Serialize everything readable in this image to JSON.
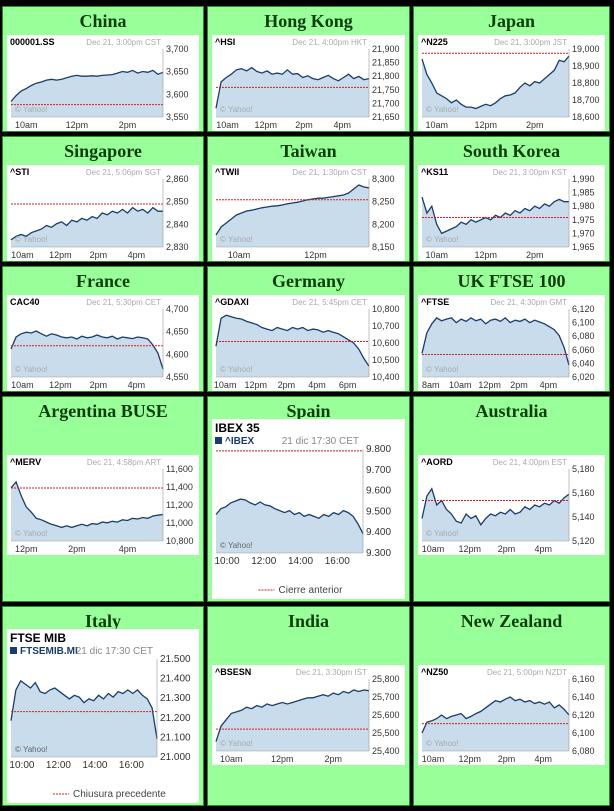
{
  "theme": {
    "cell_bg": "#99ff99",
    "page_bg": "#000000",
    "title_color": "#0d3d0d",
    "line_color": "#1a3d6e",
    "fill_color": "#c9dcec",
    "prev_close_color": "#cc2222",
    "axis_text_color": "#333333",
    "meta_text_color": "#aaaaaa"
  },
  "charts": [
    {
      "title": "China",
      "symbol": "000001.SS",
      "timestamp": "Dec 21, 3:00pm CST",
      "watermark": "© Yahoo!",
      "y_ticks": [
        "3,700",
        "3,650",
        "3,600",
        "3,550"
      ],
      "x_ticks": [
        "10am",
        "12pm",
        "2pm"
      ],
      "y_min": 3535,
      "y_max": 3710,
      "prev_close": 3567,
      "series": [
        3575,
        3590,
        3602,
        3608,
        3616,
        3622,
        3625,
        3630,
        3632,
        3630,
        3632,
        3636,
        3640,
        3642,
        3640,
        3640,
        3641,
        3640,
        3642,
        3643,
        3644,
        3648,
        3652,
        3650,
        3655,
        3648,
        3652,
        3650,
        3655,
        3645,
        3650
      ]
    },
    {
      "title": "Hong Kong",
      "symbol": "^HSI",
      "timestamp": "Dec 21, 4:00pm HKT",
      "watermark": "© Yahoo!",
      "y_ticks": [
        "21,900",
        "21,850",
        "21,800",
        "21,750",
        "21,700",
        "21,650"
      ],
      "x_ticks": [
        "10am",
        "12pm",
        "2pm",
        "4pm"
      ],
      "y_min": 21620,
      "y_max": 21930,
      "prev_close": 21755,
      "series": [
        21660,
        21780,
        21800,
        21815,
        21835,
        21840,
        21830,
        21845,
        21828,
        21820,
        21830,
        21815,
        21820,
        21815,
        21835,
        21815,
        21818,
        21800,
        21808,
        21795,
        21790,
        21800,
        21810,
        21795,
        21785,
        21800,
        21815,
        21795,
        21805,
        21790,
        21795
      ]
    },
    {
      "title": "Japan",
      "symbol": "^N225",
      "timestamp": "Dec 21, 3:00pm JST",
      "watermark": "© Yahoo!",
      "y_ticks": [
        "19,000",
        "18,900",
        "18,800",
        "18,700",
        "18,600"
      ],
      "x_ticks": [
        "10am",
        "12pm",
        "2pm"
      ],
      "y_min": 18550,
      "y_max": 19030,
      "prev_close": 19000,
      "series": [
        18960,
        18850,
        18790,
        18720,
        18700,
        18680,
        18650,
        18670,
        18640,
        18620,
        18620,
        18610,
        18625,
        18640,
        18630,
        18650,
        18680,
        18700,
        18705,
        18720,
        18760,
        18790,
        18770,
        18800,
        18790,
        18820,
        18850,
        18880,
        18950,
        18940,
        18980
      ]
    },
    {
      "title": "Singapore",
      "symbol": "^STI",
      "timestamp": "Dec 21, 5:06pm SGT",
      "watermark": "© Yahoo!",
      "y_ticks": [
        "2,860",
        "2,850",
        "2,840",
        "2,830"
      ],
      "x_ticks": [
        "10am",
        "12pm",
        "2pm",
        "4pm"
      ],
      "y_min": 2826,
      "y_max": 2864,
      "prev_close": 2850,
      "series": [
        2830,
        2832,
        2833,
        2832,
        2834,
        2835,
        2836,
        2838,
        2837,
        2839,
        2840,
        2838,
        2841,
        2840,
        2842,
        2841,
        2843,
        2842,
        2845,
        2844,
        2846,
        2845,
        2847,
        2845,
        2848,
        2846,
        2847,
        2845,
        2848,
        2846,
        2846
      ]
    },
    {
      "title": "Taiwan",
      "symbol": "^TWII",
      "timestamp": "Dec 21, 1:30pm CST",
      "watermark": "© Yahoo!",
      "y_ticks": [
        "8,300",
        "8,250",
        "8,200",
        "8,150"
      ],
      "x_ticks": [
        "10am",
        "12pm"
      ],
      "y_min": 8140,
      "y_max": 8310,
      "prev_close": 8258,
      "series": [
        8170,
        8190,
        8200,
        8210,
        8220,
        8225,
        8230,
        8232,
        8235,
        8238,
        8240,
        8242,
        8243,
        8245,
        8248,
        8250,
        8252,
        8255,
        8258,
        8260,
        8262,
        8262,
        8264,
        8266,
        8268,
        8270,
        8275,
        8285,
        8295,
        8290,
        8288
      ]
    },
    {
      "title": "South Korea",
      "symbol": "^KS11",
      "timestamp": "Dec 21, 3:00pm KST",
      "watermark": "© Yahoo!",
      "y_ticks": [
        "1,990",
        "1,985",
        "1,980",
        "1,975",
        "1,970",
        "1,965"
      ],
      "x_ticks": [
        "10am",
        "12pm",
        "2pm"
      ],
      "y_min": 1962,
      "y_max": 1992,
      "prev_close": 1975,
      "series": [
        1984,
        1977,
        1980,
        1972,
        1968,
        1969,
        1970,
        1971,
        1973,
        1972,
        1974,
        1973,
        1974,
        1975,
        1974,
        1976,
        1975,
        1977,
        1976,
        1978,
        1977,
        1979,
        1978,
        1980,
        1979,
        1981,
        1980,
        1982,
        1983,
        1982,
        1982
      ]
    },
    {
      "title": "France",
      "symbol": "CAC40",
      "timestamp": "Dec 21, 5:30pm CET",
      "watermark": "© Yahoo!",
      "y_ticks": [
        "4,700",
        "4,650",
        "4,600",
        "4,550"
      ],
      "x_ticks": [
        "10am",
        "12pm",
        "2pm",
        "4pm"
      ],
      "y_min": 4540,
      "y_max": 4710,
      "prev_close": 4618,
      "series": [
        4610,
        4640,
        4648,
        4652,
        4650,
        4655,
        4648,
        4642,
        4648,
        4645,
        4640,
        4638,
        4640,
        4635,
        4642,
        4638,
        4640,
        4645,
        4640,
        4638,
        4642,
        4635,
        4640,
        4638,
        4636,
        4640,
        4638,
        4635,
        4620,
        4600,
        4560
      ]
    },
    {
      "title": "Germany",
      "symbol": "^GDAXI",
      "timestamp": "Dec 21, 5:45pm CET",
      "watermark": "© Yahoo!",
      "y_ticks": [
        "10,800",
        "10,700",
        "10,600",
        "10,500",
        "10,400"
      ],
      "x_ticks": [
        "10am",
        "12pm",
        "2pm",
        "4pm",
        "6pm"
      ],
      "y_min": 10380,
      "y_max": 10820,
      "prev_close": 10610,
      "series": [
        10580,
        10760,
        10780,
        10770,
        10760,
        10755,
        10740,
        10730,
        10720,
        10700,
        10690,
        10680,
        10700,
        10690,
        10680,
        10700,
        10690,
        10700,
        10680,
        10690,
        10685,
        10670,
        10680,
        10670,
        10660,
        10640,
        10620,
        10600,
        10560,
        10500,
        10450
      ]
    },
    {
      "title": "UK FTSE 100",
      "symbol": "^FTSE",
      "timestamp": "Dec 21, 4:30pm GMT",
      "watermark": "© Yahoo!",
      "y_ticks": [
        "6,120",
        "6,100",
        "6,080",
        "6,060",
        "6,040",
        "6,020"
      ],
      "x_ticks": [
        "8am",
        "10am",
        "12pm",
        "2pm",
        "4pm"
      ],
      "y_min": 6010,
      "y_max": 6125,
      "prev_close": 6048,
      "series": [
        6050,
        6085,
        6100,
        6110,
        6105,
        6108,
        6110,
        6102,
        6108,
        6104,
        6110,
        6105,
        6108,
        6100,
        6106,
        6108,
        6104,
        6110,
        6102,
        6106,
        6104,
        6108,
        6102,
        6106,
        6103,
        6100,
        6095,
        6090,
        6080,
        6060,
        6030
      ]
    },
    {
      "title": "Argentina BUSE",
      "symbol": "^MERV",
      "timestamp": "Dec 21, 4:58pm ART",
      "watermark": "© Yahoo!",
      "y_ticks": [
        "11,600",
        "11,400",
        "11,200",
        "11,000",
        "10,800"
      ],
      "x_ticks": [
        "12pm",
        "2pm",
        "4pm"
      ],
      "y_min": 10700,
      "y_max": 11650,
      "prev_close": 11400,
      "series": [
        11400,
        11480,
        11300,
        11150,
        11080,
        11000,
        10980,
        10950,
        10920,
        10900,
        10880,
        10900,
        10880,
        10900,
        10920,
        10900,
        10930,
        10920,
        10950,
        10940,
        10960,
        10950,
        10980,
        10970,
        11000,
        10990,
        11010,
        11000,
        11030,
        11040,
        11050
      ]
    },
    {
      "title": "Spain",
      "symbol": "^IBEX",
      "index_name": "IBEX 35",
      "timestamp": "21 dic 17:30 CET",
      "watermark": "© Yahoo!",
      "legend": "Cierre anterior",
      "y_ticks": [
        "9.800",
        "9.700",
        "9.600",
        "9.500",
        "9.400",
        "9.300"
      ],
      "x_ticks": [
        "10:00",
        "12:00",
        "14:00",
        "16:00"
      ],
      "y_min": 9280,
      "y_max": 9820,
      "prev_close": 9810,
      "series": [
        9480,
        9510,
        9520,
        9540,
        9550,
        9560,
        9555,
        9540,
        9530,
        9545,
        9530,
        9525,
        9510,
        9500,
        9490,
        9500,
        9480,
        9490,
        9470,
        9480,
        9470,
        9460,
        9480,
        9470,
        9490,
        9480,
        9500,
        9490,
        9470,
        9430,
        9380
      ]
    },
    {
      "title": "Australia",
      "symbol": "^AORD",
      "timestamp": "Dec 21, 4:00pm EST",
      "watermark": "© Yahoo!",
      "y_ticks": [
        "5,180",
        "5,160",
        "5,140",
        "5,120"
      ],
      "x_ticks": [
        "10am",
        "12pm",
        "2pm",
        "4pm"
      ],
      "y_min": 5110,
      "y_max": 5190,
      "prev_close": 5155,
      "series": [
        5135,
        5160,
        5168,
        5150,
        5155,
        5145,
        5140,
        5132,
        5130,
        5140,
        5135,
        5138,
        5128,
        5135,
        5140,
        5138,
        5142,
        5140,
        5145,
        5140,
        5142,
        5148,
        5145,
        5150,
        5148,
        5152,
        5150,
        5155,
        5152,
        5158,
        5162
      ]
    },
    {
      "title": "Italy",
      "symbol": "FTSEMIB.MI",
      "index_name": "FTSE MIB",
      "timestamp": "21 dic 17:30 CET",
      "watermark": "© Yahoo!",
      "legend": "Chiusura precedente",
      "y_ticks": [
        "21.500",
        "21.400",
        "21.300",
        "21.200",
        "21.100",
        "21.000"
      ],
      "x_ticks": [
        "10:00",
        "12:00",
        "14:00",
        "16:00"
      ],
      "y_min": 20980,
      "y_max": 21520,
      "prev_close": 21230,
      "series": [
        21180,
        21350,
        21400,
        21380,
        21360,
        21390,
        21340,
        21330,
        21350,
        21360,
        21340,
        21320,
        21300,
        21320,
        21310,
        21280,
        21300,
        21290,
        21320,
        21300,
        21330,
        21310,
        21340,
        21330,
        21350,
        21330,
        21350,
        21320,
        21300,
        21250,
        21080
      ]
    },
    {
      "title": "India",
      "symbol": "^BSESN",
      "timestamp": "Dec 21, 3:30pm IST",
      "watermark": "© Yahoo!",
      "y_ticks": [
        "25,800",
        "25,700",
        "25,600",
        "25,500",
        "25,400"
      ],
      "x_ticks": [
        "10am",
        "12pm",
        "2pm"
      ],
      "y_min": 25360,
      "y_max": 25820,
      "prev_close": 25500,
      "series": [
        25420,
        25520,
        25560,
        25600,
        25610,
        25620,
        25640,
        25630,
        25650,
        25640,
        25660,
        25650,
        25660,
        25670,
        25660,
        25670,
        25680,
        25690,
        25700,
        25700,
        25710,
        25720,
        25710,
        25730,
        25720,
        25740,
        25730,
        25750,
        25740,
        25750,
        25745
      ]
    },
    {
      "title": "New Zealand",
      "symbol": "^NZ50",
      "timestamp": "Dec 21, 5:00pm NZDT",
      "watermark": "© Yahoo!",
      "y_ticks": [
        "6,160",
        "6,140",
        "6,120",
        "6,100",
        "6,080"
      ],
      "x_ticks": [
        "10am",
        "12pm",
        "2pm",
        "4pm"
      ],
      "y_min": 6070,
      "y_max": 6170,
      "prev_close": 6108,
      "series": [
        6095,
        6110,
        6112,
        6115,
        6120,
        6115,
        6118,
        6120,
        6122,
        6115,
        6118,
        6122,
        6125,
        6130,
        6135,
        6140,
        6138,
        6142,
        6145,
        6140,
        6142,
        6138,
        6140,
        6136,
        6138,
        6135,
        6138,
        6130,
        6134,
        6128,
        6120
      ]
    }
  ]
}
